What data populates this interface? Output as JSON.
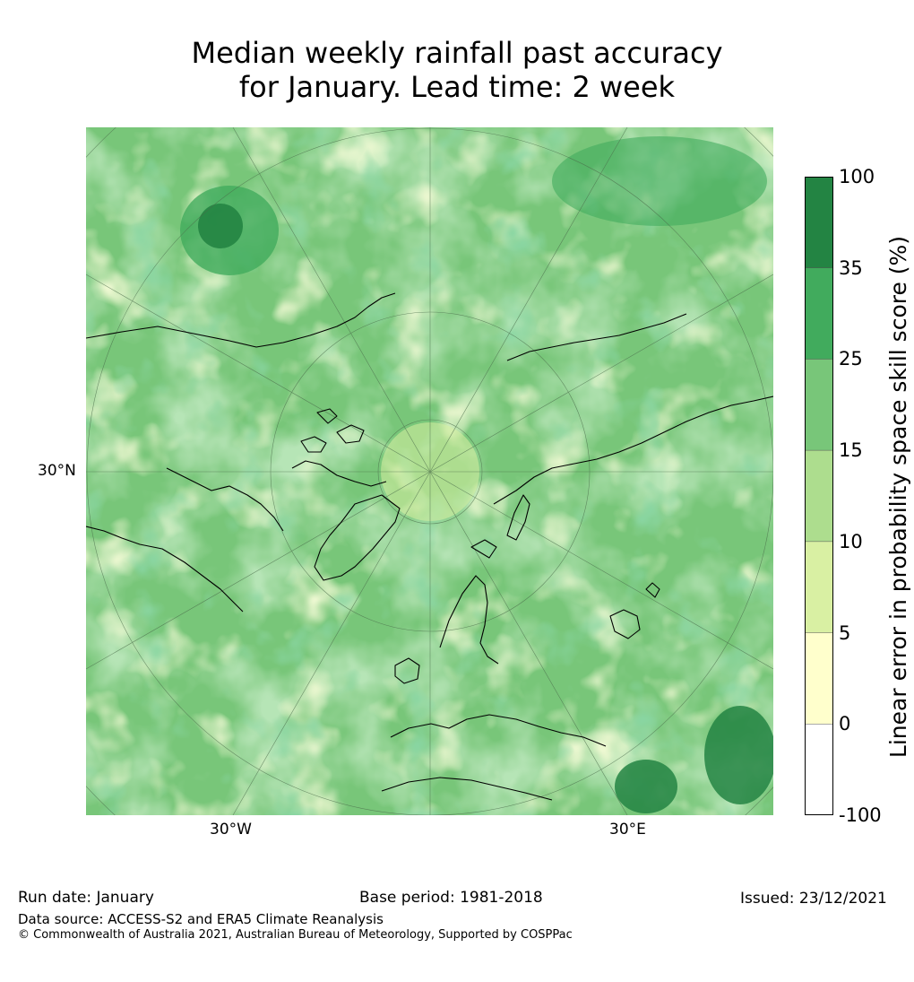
{
  "title_line1": "Median weekly rainfall past accuracy",
  "title_line2": "for January. Lead time: 2 week",
  "map_labels": {
    "lat_30n": "30°N",
    "lon_30w": "30°W",
    "lon_30e": "30°E"
  },
  "colorbar": {
    "title": "Linear error in probability space skill score (%)",
    "ticks": [
      "100",
      "35",
      "25",
      "15",
      "10",
      "5",
      "0",
      "-100"
    ],
    "bins": [
      {
        "range": "35–100",
        "color": "#238443"
      },
      {
        "range": "25–35",
        "color": "#41ab5d"
      },
      {
        "range": "15–25",
        "color": "#78c679"
      },
      {
        "range": "10–15",
        "color": "#addd8e"
      },
      {
        "range": "5–10",
        "color": "#d9f0a3"
      },
      {
        "range": "0–5",
        "color": "#ffffcc"
      },
      {
        "range": "-100–0",
        "color": "#ffffff"
      }
    ]
  },
  "footer": {
    "run_date": "Run date: January",
    "base_period": "Base period: 1981-2018",
    "issued": "Issued: 23/12/2021",
    "data_source": "Data source: ACCESS-S2 and ERA5 Climate Reanalysis",
    "copyright": "© Commonwealth of Australia 2021, Australian Bureau of Meteorology, Supported by COSPPac"
  }
}
